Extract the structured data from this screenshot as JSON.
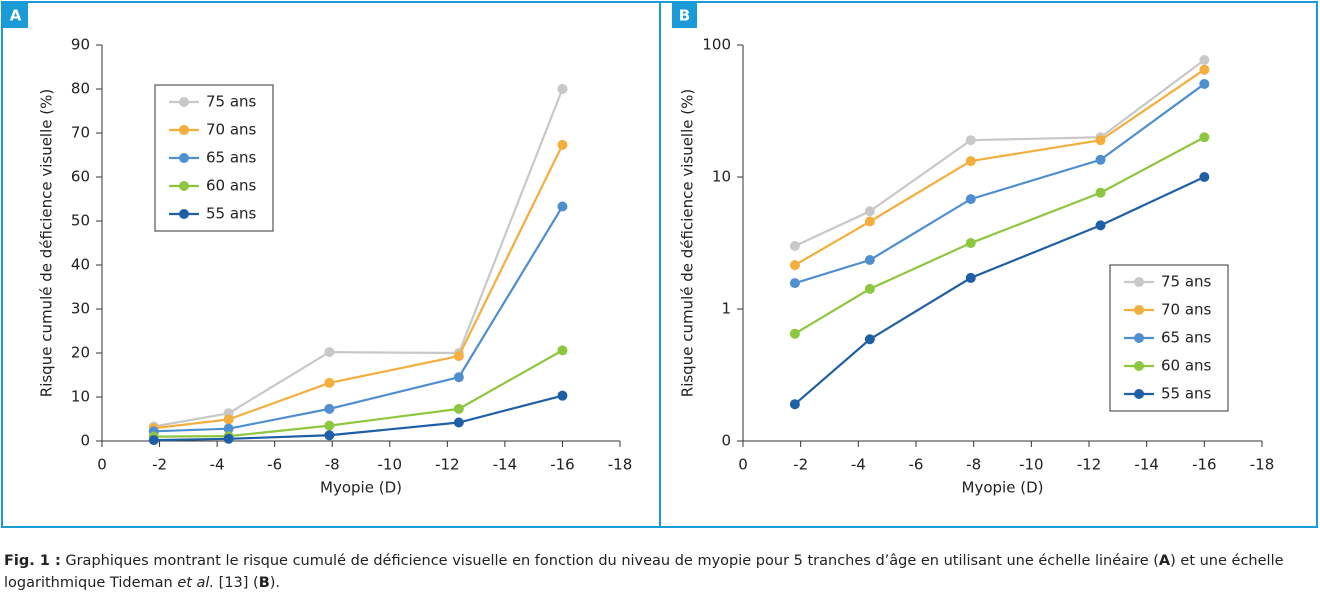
{
  "chart_data": [
    {
      "type": "line",
      "panel": "A",
      "ylabel": "Risque cumulé de déficience visuelle (%)",
      "xlabel": "Myopie (D)",
      "x": [
        -1.8,
        -4.4,
        -7.9,
        -12.4,
        -16
      ],
      "xlim": [
        0,
        -18
      ],
      "xticks": [
        0,
        -2,
        -4,
        -6,
        -8,
        -10,
        -12,
        -14,
        -16,
        -18
      ],
      "ylim": [
        0,
        90
      ],
      "yticks": [
        0,
        10,
        20,
        30,
        40,
        50,
        60,
        70,
        80,
        90
      ],
      "log_y": false,
      "legend": "upper left",
      "series": [
        {
          "name": "75 ans",
          "color": "#c8c8c8",
          "values": [
            3.3,
            6.3,
            20.2,
            20,
            80
          ]
        },
        {
          "name": "70 ans",
          "color": "#f4ae3d",
          "values": [
            2.9,
            4.9,
            13.2,
            19.3,
            67.3
          ]
        },
        {
          "name": "65 ans",
          "color": "#4f8fcf",
          "values": [
            2.2,
            2.8,
            7.3,
            14.5,
            53.3
          ]
        },
        {
          "name": "60 ans",
          "color": "#8dc63f",
          "values": [
            1.0,
            1.1,
            3.5,
            7.3,
            20.6
          ]
        },
        {
          "name": "55 ans",
          "color": "#1f5fa6",
          "values": [
            0.2,
            0.5,
            1.3,
            4.2,
            10.3
          ]
        }
      ]
    },
    {
      "type": "line",
      "panel": "B",
      "ylabel": "Risque cumulé de déficience visuelle (%)",
      "xlabel": "Myopie (D)",
      "x": [
        -1.8,
        -4.4,
        -7.9,
        -12.4,
        -16
      ],
      "xlim": [
        0,
        -18
      ],
      "xticks": [
        0,
        -2,
        -4,
        -6,
        -8,
        -10,
        -12,
        -14,
        -16,
        -18
      ],
      "ylim": [
        0.1,
        100
      ],
      "yticks": [
        {
          "value": 0.1,
          "label": "0"
        },
        1,
        10,
        100
      ],
      "log_y": true,
      "legend": "lower right",
      "series": [
        {
          "name": "75 ans",
          "color": "#c8c8c8",
          "values": [
            3.0,
            5.5,
            19,
            20,
            77
          ]
        },
        {
          "name": "70 ans",
          "color": "#f4ae3d",
          "values": [
            2.15,
            4.6,
            13.2,
            19,
            65
          ]
        },
        {
          "name": "65 ans",
          "color": "#4f8fcf",
          "values": [
            1.57,
            2.35,
            6.8,
            13.5,
            50.7
          ]
        },
        {
          "name": "60 ans",
          "color": "#8dc63f",
          "values": [
            0.65,
            1.42,
            3.16,
            7.6,
            20
          ]
        },
        {
          "name": "55 ans",
          "color": "#1f5fa6",
          "values": [
            0.19,
            0.59,
            1.72,
            4.3,
            10
          ]
        }
      ]
    }
  ],
  "caption": {
    "label": "Fig. 1 :",
    "text_1": " Graphiques montrant le risque cumulé de déficience visuelle en fonction du niveau de myopie pour 5 tranches d’âge en utilisant une échelle linéaire (",
    "ref_a": "A",
    "text_2": ") et une échelle logarithmique Tideman ",
    "italic": "et al.",
    "text_3": " [13] (",
    "ref_b": "B",
    "text_4": ")."
  }
}
